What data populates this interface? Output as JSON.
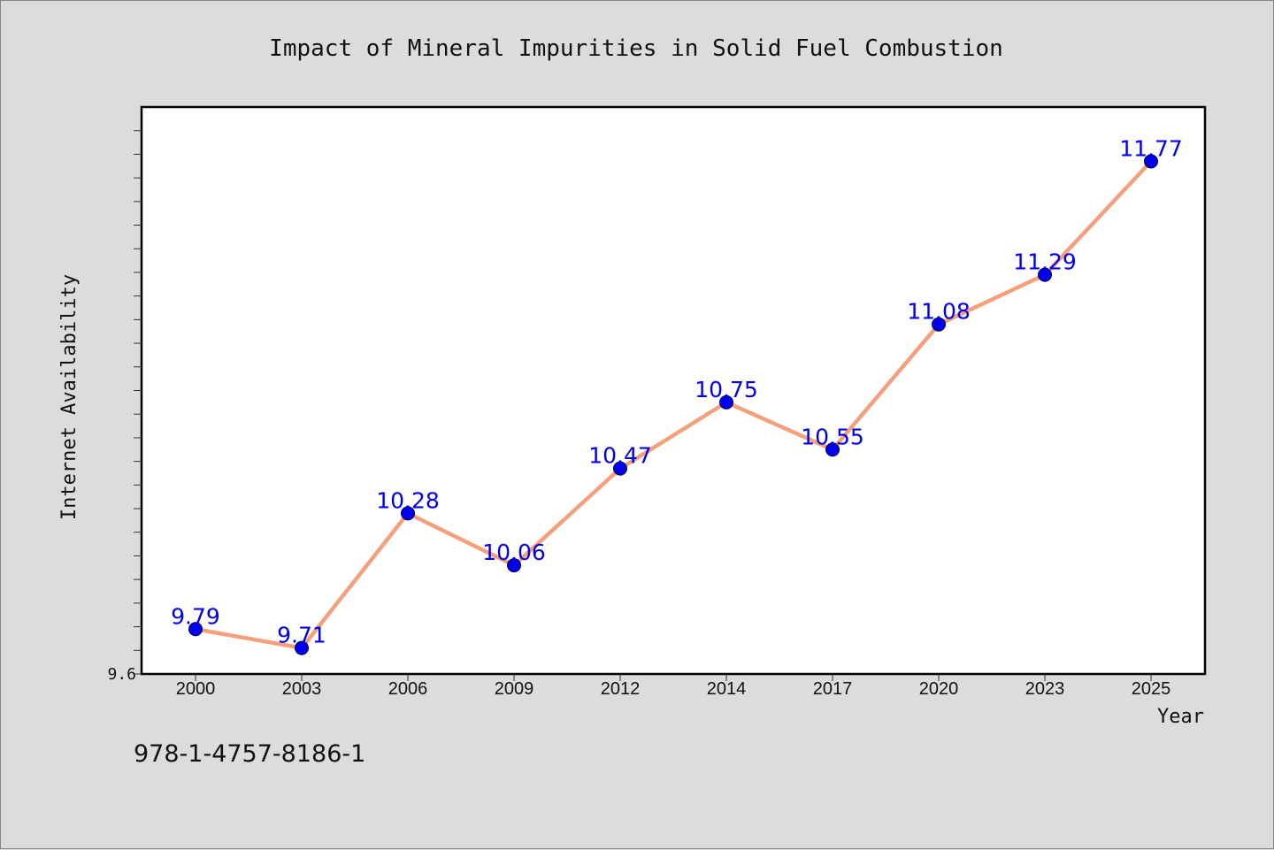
{
  "chart_data": {
    "type": "line",
    "title": "Impact of Mineral Impurities in Solid Fuel Combustion",
    "xlabel": "Year",
    "ylabel": "Internet Availability",
    "categories": [
      "2000",
      "2003",
      "2006",
      "2009",
      "2012",
      "2014",
      "2017",
      "2020",
      "2023",
      "2025"
    ],
    "series": [
      {
        "values": [
          9.79,
          9.71,
          10.28,
          10.06,
          10.47,
          10.75,
          10.55,
          11.08,
          11.29,
          11.77
        ]
      }
    ],
    "ylim": [
      9.6,
      12.0
    ],
    "y_tick_labels": [
      "9.6"
    ],
    "grid": false,
    "legend": "none",
    "colors": {
      "line": "#f4a07c",
      "marker": "#0000ee",
      "data_label": "#0000ee",
      "plot_background": "#ffffff",
      "figure_background": "#dcdcdc"
    }
  },
  "footer": {
    "isbn": "978-1-4757-8186-1"
  }
}
